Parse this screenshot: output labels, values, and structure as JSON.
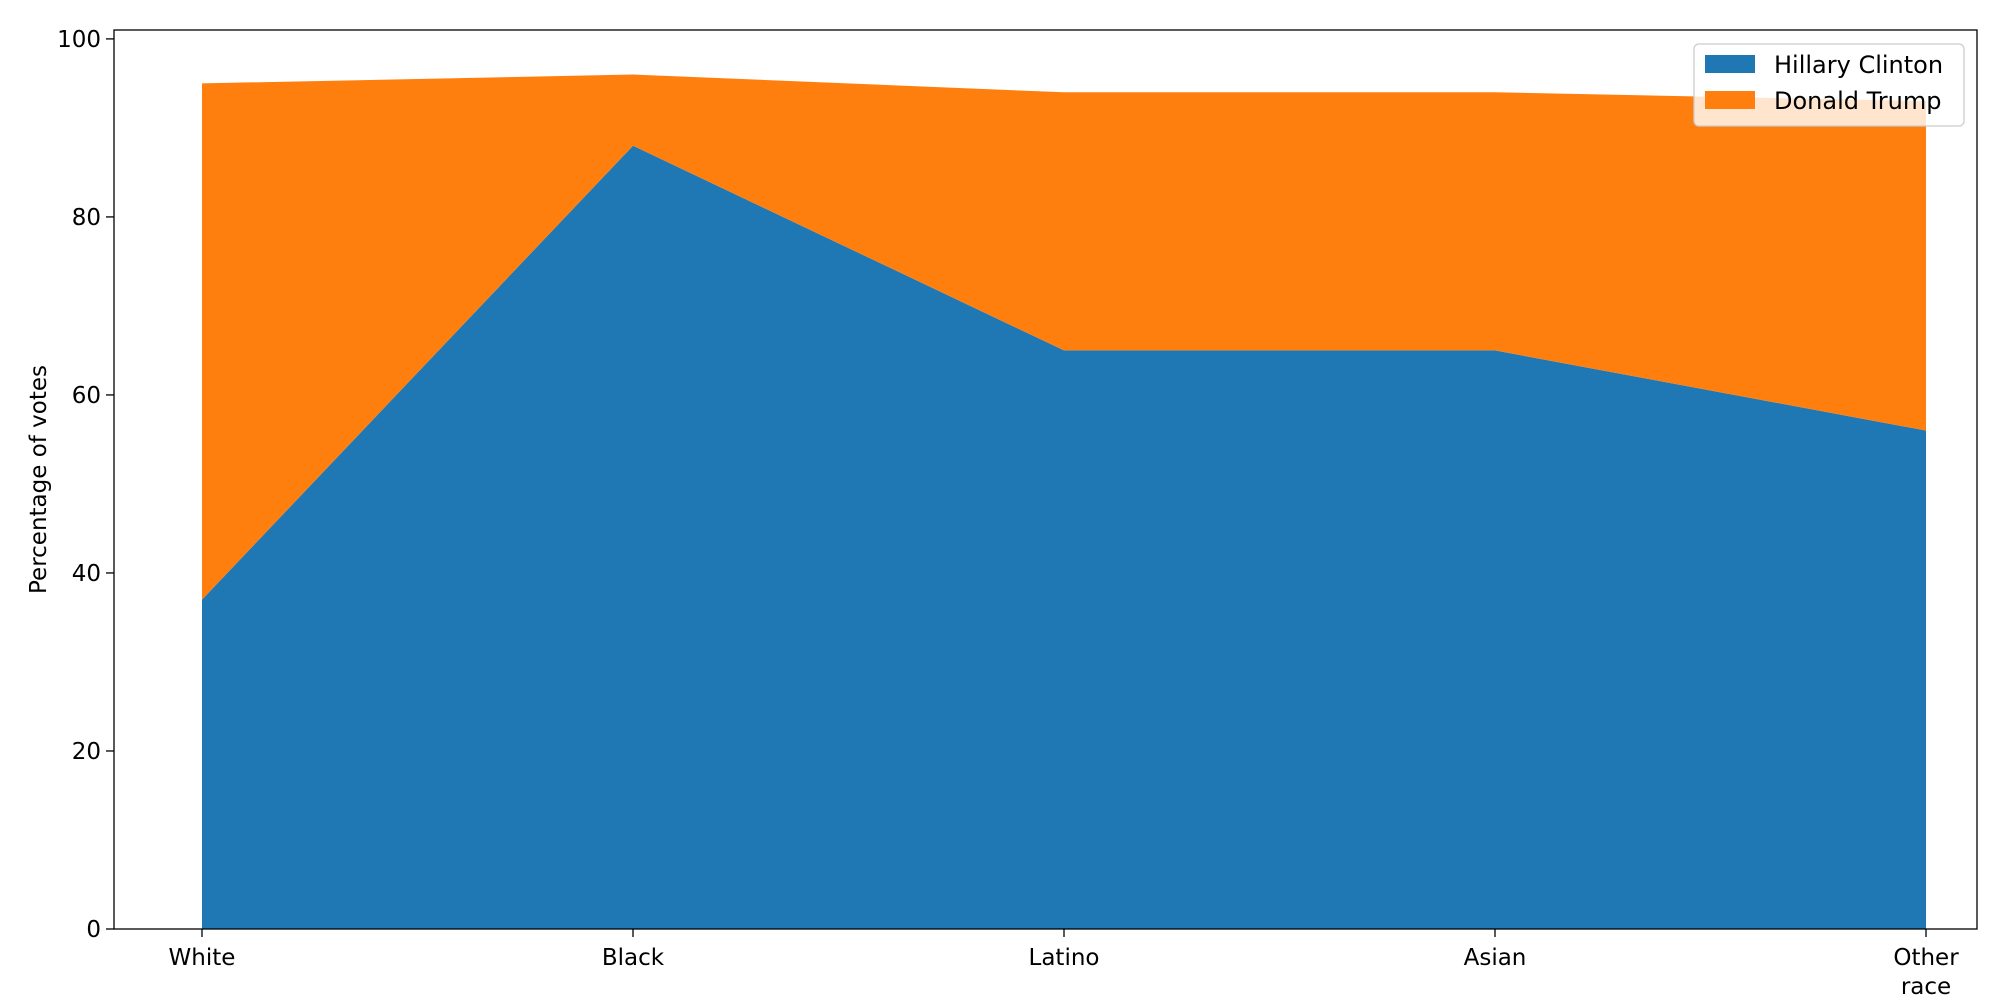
{
  "chart_data": {
    "type": "area",
    "stacked": true,
    "categories": [
      "White",
      "Black",
      "Latino",
      "Asian",
      "Other race"
    ],
    "series": [
      {
        "name": "Hillary Clinton",
        "values": [
          37,
          88,
          65,
          65,
          56
        ],
        "color": "#1f77b4"
      },
      {
        "name": "Donald Trump",
        "values": [
          58,
          8,
          29,
          29,
          37
        ],
        "color": "#ff7f0e"
      }
    ],
    "ylabel": "Percentage of votes",
    "xlabel": "",
    "ylim": [
      0,
      101
    ],
    "yticks": [
      0,
      20,
      40,
      60,
      80,
      100
    ],
    "legend_position": "top-right",
    "grid": false
  }
}
